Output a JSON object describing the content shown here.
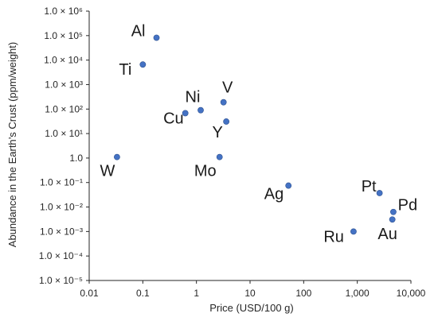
{
  "chart_data": {
    "type": "scatter",
    "xlabel": "Price (USD/100 g)",
    "ylabel": "Abundance in the Earth’s Crust (ppm/weight)",
    "x_scale": "log",
    "y_scale": "log",
    "xlim": [
      0.01,
      10000
    ],
    "ylim": [
      1e-05,
      1000000
    ],
    "x_ticks": [
      {
        "value": 0.01,
        "label": "0.01"
      },
      {
        "value": 0.1,
        "label": "0.1"
      },
      {
        "value": 1,
        "label": "1"
      },
      {
        "value": 10,
        "label": "10"
      },
      {
        "value": 100,
        "label": "100"
      },
      {
        "value": 1000,
        "label": "1,000"
      },
      {
        "value": 10000,
        "label": "10,000"
      }
    ],
    "y_ticks": [
      {
        "value": 1000000,
        "label": "1.0 × 10⁶"
      },
      {
        "value": 100000,
        "label": "1.0 × 10⁵"
      },
      {
        "value": 10000,
        "label": "1.0 × 10⁴"
      },
      {
        "value": 1000,
        "label": "1.0 × 10³"
      },
      {
        "value": 100,
        "label": "1.0 × 10²"
      },
      {
        "value": 10,
        "label": "1.0 × 10¹"
      },
      {
        "value": 1,
        "label": "1.0"
      },
      {
        "value": 0.1,
        "label": "1.0 × 10⁻¹"
      },
      {
        "value": 0.01,
        "label": "1.0 × 10⁻²"
      },
      {
        "value": 0.001,
        "label": "1.0 × 10⁻³"
      },
      {
        "value": 0.0001,
        "label": "1.0 × 10⁻⁴"
      },
      {
        "value": 1e-05,
        "label": "1.0 × 10⁻⁵"
      }
    ],
    "grid": false,
    "legend": "none",
    "marker_color": "#4472c4",
    "points": [
      {
        "label": "Al",
        "x": 0.18,
        "y": 82000
      },
      {
        "label": "Ti",
        "x": 0.1,
        "y": 6600
      },
      {
        "label": "Ni",
        "x": 1.2,
        "y": 90
      },
      {
        "label": "V",
        "x": 3.2,
        "y": 190
      },
      {
        "label": "Cu",
        "x": 0.62,
        "y": 68
      },
      {
        "label": "Y",
        "x": 3.6,
        "y": 31
      },
      {
        "label": "W",
        "x": 0.033,
        "y": 1.1
      },
      {
        "label": "Mo",
        "x": 2.7,
        "y": 1.1
      },
      {
        "label": "Ag",
        "x": 52,
        "y": 0.075
      },
      {
        "label": "Pt",
        "x": 2600,
        "y": 0.037
      },
      {
        "label": "Pd",
        "x": 4700,
        "y": 0.0063
      },
      {
        "label": "Au",
        "x": 4500,
        "y": 0.0031
      },
      {
        "label": "Ru",
        "x": 850,
        "y": 0.001
      }
    ]
  }
}
